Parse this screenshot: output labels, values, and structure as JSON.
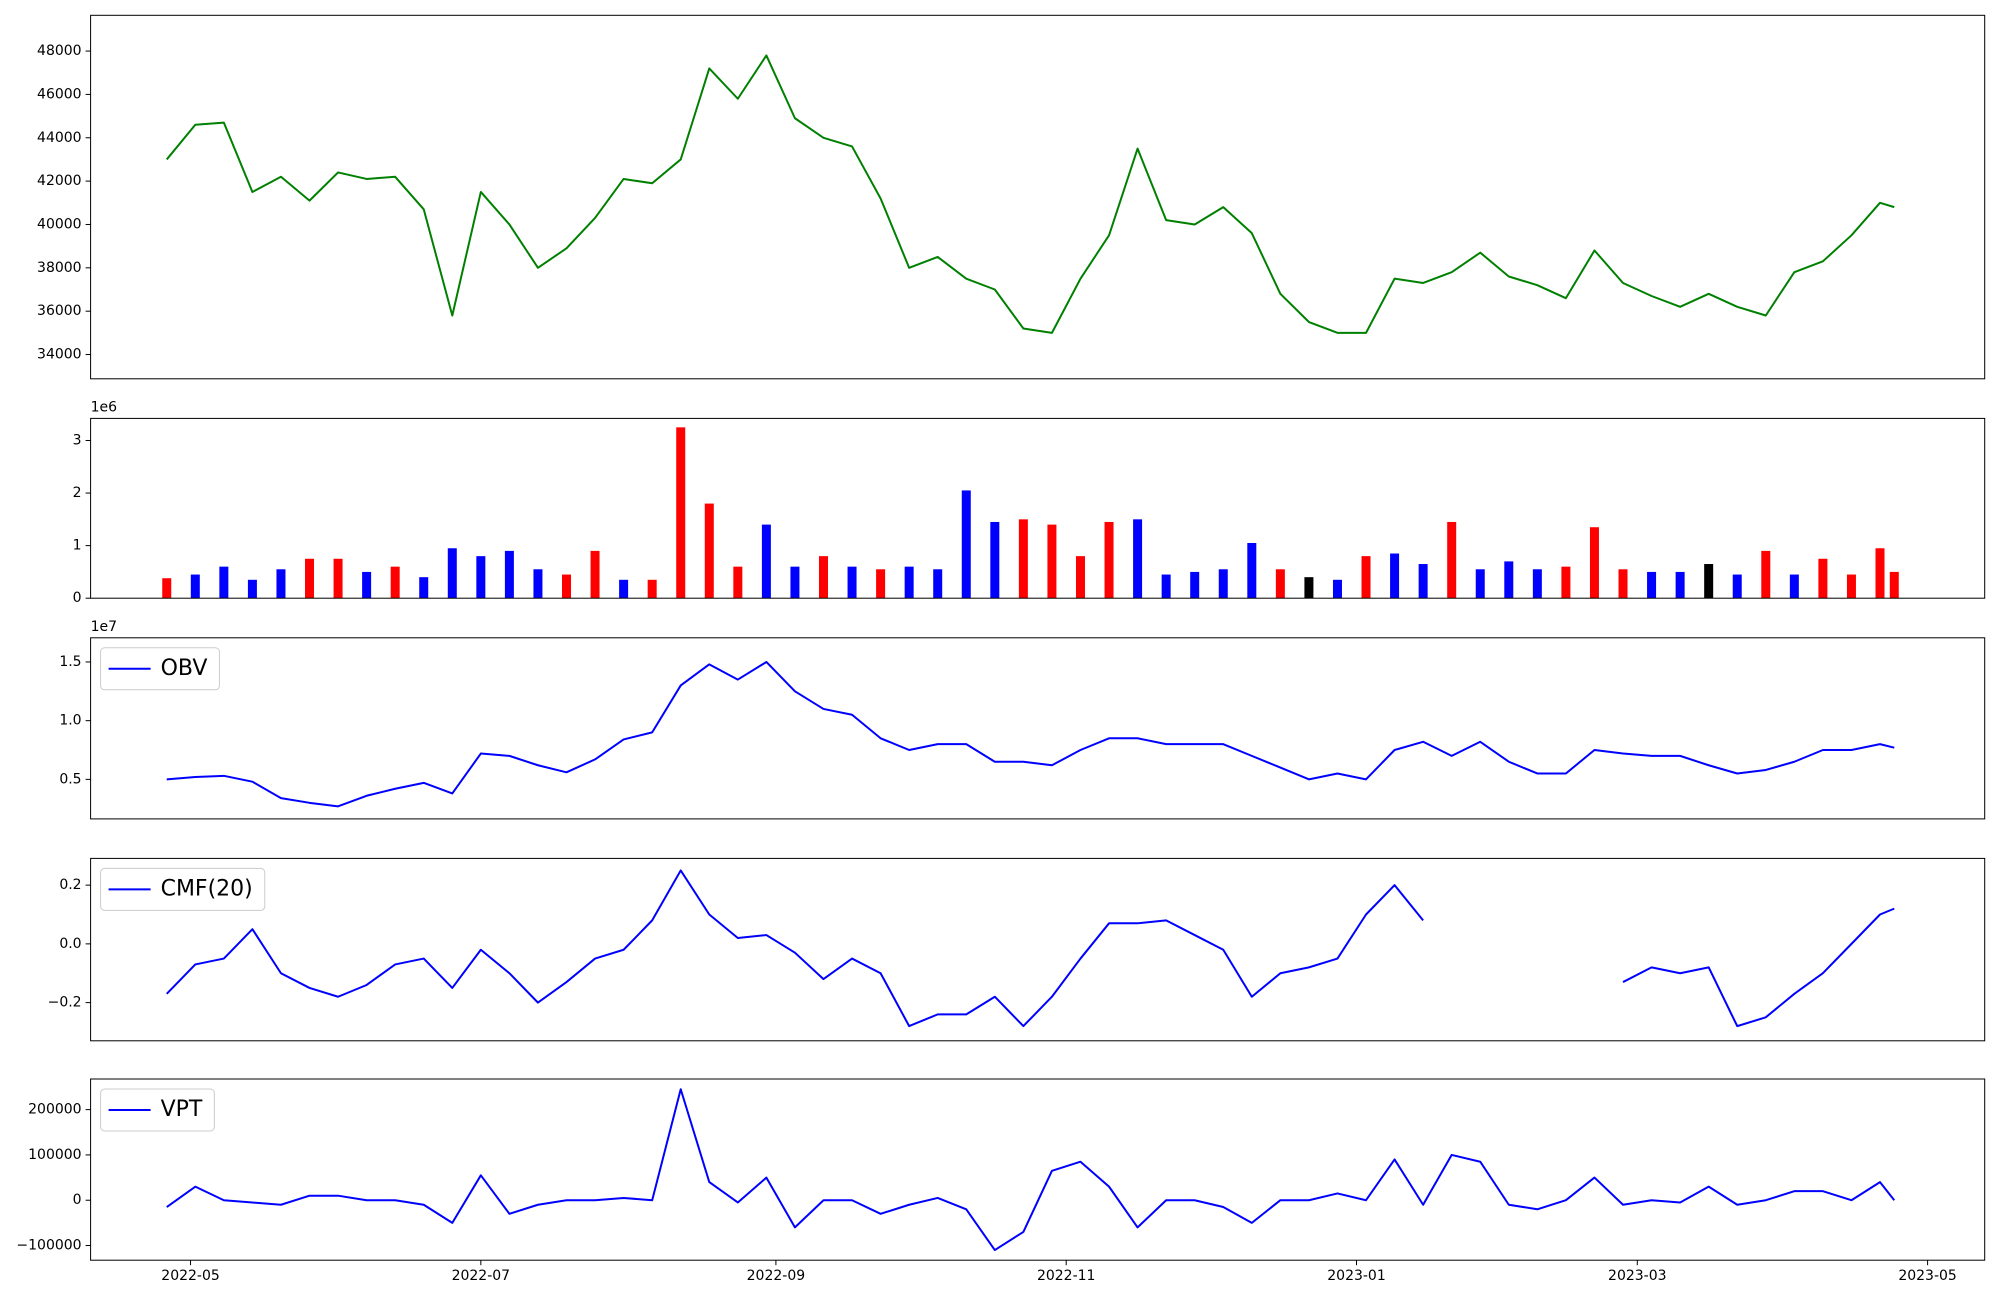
{
  "chart_data": [
    {
      "type": "line",
      "color": "green",
      "x": [
        -5,
        1,
        7,
        13,
        19,
        25,
        31,
        37,
        43,
        49,
        55,
        61,
        67,
        73,
        79,
        85,
        91,
        97,
        103,
        109,
        115,
        121,
        127,
        133,
        139,
        145,
        151,
        157,
        163,
        169,
        175,
        181,
        187,
        193,
        199,
        205,
        211,
        217,
        223,
        229,
        235,
        241,
        247,
        253,
        259,
        265,
        271,
        277,
        283,
        289,
        295,
        301,
        307,
        313,
        319,
        325,
        331,
        337,
        343,
        349,
        355,
        358
      ],
      "values": [
        43000,
        44600,
        44700,
        41500,
        42200,
        41100,
        42400,
        42100,
        42200,
        40700,
        35800,
        41500,
        40000,
        38000,
        38900,
        40300,
        42100,
        41900,
        43000,
        47200,
        45800,
        47800,
        44900,
        44000,
        43600,
        41200,
        38000,
        38500,
        37500,
        37000,
        35200,
        35000,
        37500,
        39500,
        43500,
        40200,
        40000,
        40800,
        39600,
        36800,
        35500,
        35000,
        35000,
        37500,
        37300,
        37800,
        38700,
        37600,
        37200,
        36600,
        38800,
        37300,
        36700,
        36200,
        36800,
        36200,
        35800,
        37800,
        38300,
        39500,
        41000,
        40800
      ],
      "xlim": [
        -21,
        377
      ],
      "ylim": [
        32880,
        49650
      ],
      "yticks": [
        34000,
        36000,
        38000,
        40000,
        42000,
        44000,
        46000,
        48000
      ]
    },
    {
      "type": "bar",
      "offset_label": "1e6",
      "x": [
        -5,
        1,
        7,
        13,
        19,
        25,
        31,
        37,
        43,
        49,
        55,
        61,
        67,
        73,
        79,
        85,
        91,
        97,
        103,
        109,
        115,
        121,
        127,
        133,
        139,
        145,
        151,
        157,
        163,
        169,
        175,
        181,
        187,
        193,
        199,
        205,
        211,
        217,
        223,
        229,
        235,
        241,
        247,
        253,
        259,
        265,
        271,
        277,
        283,
        289,
        295,
        301,
        307,
        313,
        319,
        325,
        331,
        337,
        343,
        349,
        355,
        358
      ],
      "values": [
        380000,
        450000,
        600000,
        350000,
        550000,
        750000,
        750000,
        500000,
        600000,
        400000,
        950000,
        800000,
        900000,
        550000,
        450000,
        900000,
        350000,
        350000,
        3250000,
        1800000,
        600000,
        1400000,
        600000,
        800000,
        600000,
        550000,
        600000,
        550000,
        2050000,
        1450000,
        1500000,
        1400000,
        800000,
        1450000,
        1500000,
        450000,
        500000,
        550000,
        1050000,
        550000,
        400000,
        350000,
        800000,
        850000,
        650000,
        1450000,
        550000,
        700000,
        550000,
        600000,
        1350000,
        550000,
        500000,
        500000,
        650000,
        450000,
        900000,
        450000,
        750000,
        450000,
        950000,
        500000
      ],
      "colors": [
        "red",
        "blue",
        "blue",
        "blue",
        "blue",
        "red",
        "red",
        "blue",
        "red",
        "blue",
        "blue",
        "blue",
        "blue",
        "blue",
        "red",
        "red",
        "blue",
        "red",
        "red",
        "red",
        "red",
        "blue",
        "blue",
        "red",
        "blue",
        "red",
        "blue",
        "blue",
        "blue",
        "blue",
        "red",
        "red",
        "red",
        "red",
        "blue",
        "blue",
        "blue",
        "blue",
        "blue",
        "red",
        "black",
        "blue",
        "red",
        "blue",
        "blue",
        "red",
        "blue",
        "blue",
        "blue",
        "red",
        "red",
        "red",
        "blue",
        "blue",
        "black",
        "blue",
        "red",
        "blue",
        "red",
        "red",
        "red",
        "red"
      ],
      "xlim": [
        -21,
        377
      ],
      "ylim": [
        0,
        3420000
      ],
      "yticks": [
        0,
        {
          "value": 1000000,
          "label": "1"
        },
        {
          "value": 2000000,
          "label": "2"
        },
        {
          "value": 3000000,
          "label": "3"
        }
      ]
    },
    {
      "type": "line",
      "offset_label": "1e7",
      "legend": "upper left",
      "x": [
        -5,
        1,
        7,
        13,
        19,
        25,
        31,
        37,
        43,
        49,
        55,
        61,
        67,
        73,
        79,
        85,
        91,
        97,
        103,
        109,
        115,
        121,
        127,
        133,
        139,
        145,
        151,
        157,
        163,
        169,
        175,
        181,
        187,
        193,
        199,
        205,
        211,
        217,
        223,
        229,
        235,
        241,
        247,
        253,
        259,
        265,
        271,
        277,
        283,
        289,
        295,
        301,
        307,
        313,
        319,
        325,
        331,
        337,
        343,
        349,
        355,
        358
      ],
      "series": [
        {
          "name": "OBV",
          "color": "blue",
          "values": [
            5000000,
            5200000,
            5300000,
            4800000,
            3400000,
            3000000,
            2700000,
            3600000,
            4200000,
            4700000,
            3800000,
            7200000,
            7000000,
            6200000,
            5600000,
            6700000,
            8400000,
            9000000,
            13000000,
            14800000,
            13500000,
            15000000,
            12500000,
            11000000,
            10500000,
            8500000,
            7500000,
            8000000,
            8000000,
            6500000,
            6500000,
            6200000,
            7500000,
            8500000,
            8500000,
            8000000,
            8000000,
            8000000,
            7000000,
            6000000,
            5000000,
            5500000,
            5000000,
            7500000,
            8200000,
            7000000,
            8200000,
            6500000,
            5500000,
            5500000,
            7500000,
            7200000,
            7000000,
            7000000,
            6200000,
            5500000,
            5800000,
            6500000,
            7500000,
            7500000,
            8000000,
            7700000
          ]
        }
      ],
      "xlim": [
        -21,
        377
      ],
      "ylim": [
        1630000,
        17060000
      ],
      "yticks": [
        {
          "value": 5000000,
          "label": "0.5"
        },
        {
          "value": 10000000,
          "label": "1.0"
        },
        {
          "value": 15000000,
          "label": "1.5"
        }
      ]
    },
    {
      "type": "line",
      "legend": "upper left",
      "x": [
        -5,
        1,
        7,
        13,
        19,
        25,
        31,
        37,
        43,
        49,
        55,
        61,
        67,
        73,
        79,
        85,
        91,
        97,
        103,
        109,
        115,
        121,
        127,
        133,
        139,
        145,
        151,
        157,
        163,
        169,
        175,
        181,
        187,
        193,
        199,
        205,
        211,
        217,
        223,
        229,
        235,
        241,
        247,
        253,
        259,
        265,
        271,
        277,
        283,
        289,
        295,
        301,
        307,
        313,
        319,
        325,
        331,
        337,
        343,
        349,
        355,
        358
      ],
      "series": [
        {
          "name": "CMF(20)",
          "color": "blue",
          "values": [
            -0.17,
            -0.07,
            -0.05,
            0.05,
            -0.1,
            -0.15,
            -0.18,
            -0.14,
            -0.07,
            -0.05,
            -0.15,
            -0.02,
            -0.1,
            -0.2,
            -0.13,
            -0.05,
            -0.02,
            0.08,
            0.25,
            0.1,
            0.02,
            0.03,
            -0.03,
            -0.12,
            -0.05,
            -0.1,
            -0.28,
            -0.24,
            -0.24,
            -0.18,
            -0.28,
            -0.18,
            -0.05,
            0.07,
            0.07,
            0.08,
            0.03,
            -0.02,
            -0.18,
            -0.1,
            -0.08,
            -0.05,
            0.1,
            0.2,
            0.08,
            null,
            null,
            null,
            null,
            null,
            null,
            -0.13,
            -0.08,
            -0.1,
            -0.08,
            -0.28,
            -0.25,
            -0.17,
            -0.1,
            0.0,
            0.1,
            0.12
          ]
        }
      ],
      "xlim": [
        -21,
        377
      ],
      "ylim": [
        -0.33,
        0.291
      ],
      "yticks": [
        {
          "value": -0.2,
          "label": "−0.2"
        },
        {
          "value": 0,
          "label": "0.0"
        },
        0.2
      ]
    },
    {
      "type": "line",
      "legend": "upper left",
      "x": [
        -5,
        1,
        7,
        13,
        19,
        25,
        31,
        37,
        43,
        49,
        55,
        61,
        67,
        73,
        79,
        85,
        91,
        97,
        103,
        109,
        115,
        121,
        127,
        133,
        139,
        145,
        151,
        157,
        163,
        169,
        175,
        181,
        187,
        193,
        199,
        205,
        211,
        217,
        223,
        229,
        235,
        241,
        247,
        253,
        259,
        265,
        271,
        277,
        283,
        289,
        295,
        301,
        307,
        313,
        319,
        325,
        331,
        337,
        343,
        349,
        355,
        358
      ],
      "series": [
        {
          "name": "VPT",
          "color": "blue",
          "values": [
            -15000,
            30000,
            0,
            -5000,
            -10000,
            10000,
            10000,
            0,
            0,
            -10000,
            -50000,
            55000,
            -30000,
            -10000,
            0,
            0,
            5000,
            0,
            245000,
            40000,
            -5000,
            50000,
            -60000,
            0,
            0,
            -30000,
            -10000,
            5000,
            -20000,
            -110000,
            -70000,
            65000,
            85000,
            30000,
            -60000,
            0,
            0,
            -15000,
            -50000,
            0,
            0,
            15000,
            0,
            90000,
            -10000,
            100000,
            85000,
            -10000,
            -20000,
            0,
            50000,
            -10000,
            0,
            -5000,
            30000,
            -10000,
            0,
            20000,
            20000,
            0,
            40000,
            0
          ]
        }
      ],
      "xlim": [
        -21,
        377
      ],
      "ylim": [
        -132400,
        267600
      ],
      "yticks": [
        {
          "value": -100000,
          "label": "−100000"
        },
        0,
        100000,
        200000
      ],
      "xticks": [
        {
          "value": 0,
          "label": "2022-05"
        },
        {
          "value": 61,
          "label": "2022-07"
        },
        {
          "value": 123,
          "label": "2022-09"
        },
        {
          "value": 184,
          "label": "2022-11"
        },
        {
          "value": 245,
          "label": "2023-01"
        },
        {
          "value": 304,
          "label": "2023-03"
        },
        {
          "value": 365,
          "label": "2023-05"
        }
      ]
    }
  ]
}
